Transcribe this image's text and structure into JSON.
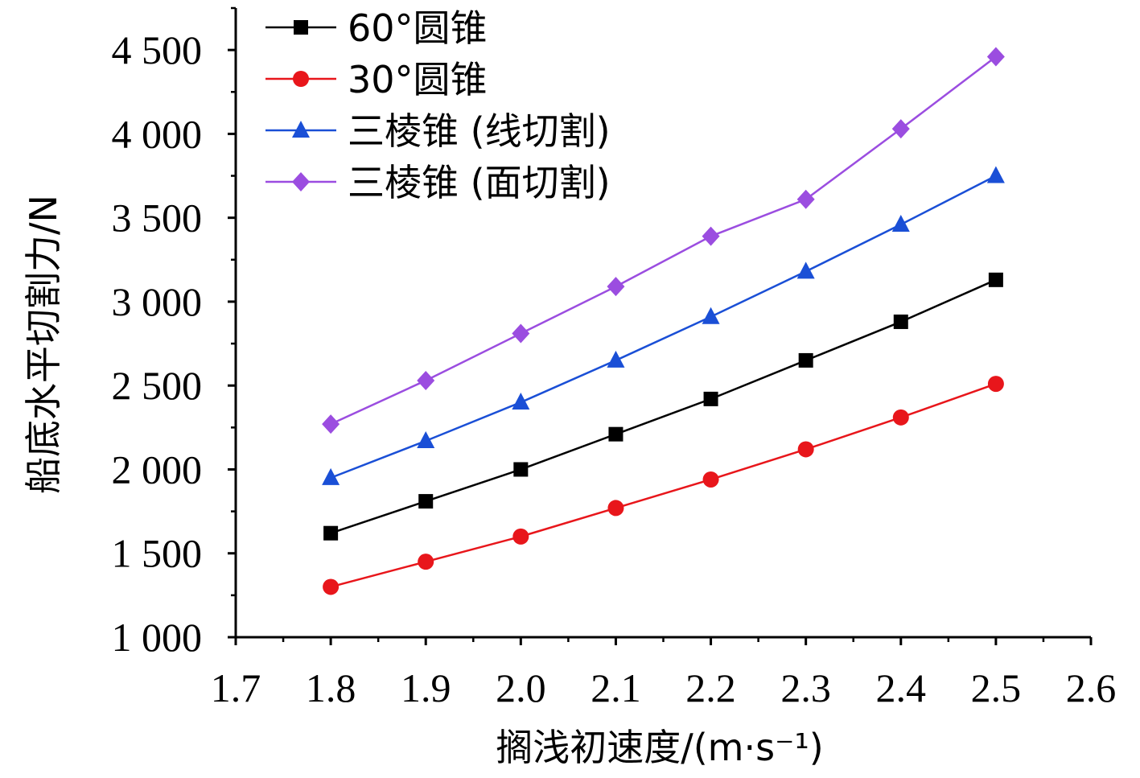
{
  "chart_data": {
    "type": "line",
    "title": "",
    "xlabel": "搁浅初速度/(m·s⁻¹)",
    "ylabel": "船底水平切割力/N",
    "xlim": [
      1.7,
      2.6
    ],
    "ylim": [
      1000,
      4750
    ],
    "x_ticks": [
      1.7,
      1.8,
      1.9,
      2.0,
      2.1,
      2.2,
      2.3,
      2.4,
      2.5,
      2.6
    ],
    "x_tick_labels": [
      "1.7",
      "1.8",
      "1.9",
      "2.0",
      "2.1",
      "2.2",
      "2.3",
      "2.4",
      "2.5",
      "2.6"
    ],
    "y_ticks": [
      1000,
      1500,
      2000,
      2500,
      3000,
      3500,
      4000,
      4500
    ],
    "y_tick_labels": [
      "1 000",
      "1 500",
      "2 000",
      "2 500",
      "3 000",
      "3 500",
      "4 000",
      "4 500"
    ],
    "legend_position": "top-left",
    "grid": false,
    "x": [
      1.8,
      1.9,
      2.0,
      2.1,
      2.2,
      2.3,
      2.4,
      2.5
    ],
    "series": [
      {
        "name": "60°圆锥",
        "color": "#000000",
        "marker": "square",
        "values": [
          1620,
          1810,
          2000,
          2210,
          2420,
          2650,
          2880,
          3130
        ]
      },
      {
        "name": "30°圆锥",
        "color": "#e8161b",
        "marker": "circle",
        "values": [
          1300,
          1450,
          1600,
          1770,
          1940,
          2120,
          2310,
          2510
        ]
      },
      {
        "name": "三棱锥 (线切割)",
        "color": "#1a4fd6",
        "marker": "triangle",
        "values": [
          1950,
          2170,
          2400,
          2650,
          2910,
          3180,
          3460,
          3750
        ]
      },
      {
        "name": "三棱锥 (面切割)",
        "color": "#9b4de0",
        "marker": "diamond",
        "values": [
          2270,
          2530,
          2810,
          3090,
          3390,
          3610,
          4030,
          4460
        ]
      }
    ]
  }
}
